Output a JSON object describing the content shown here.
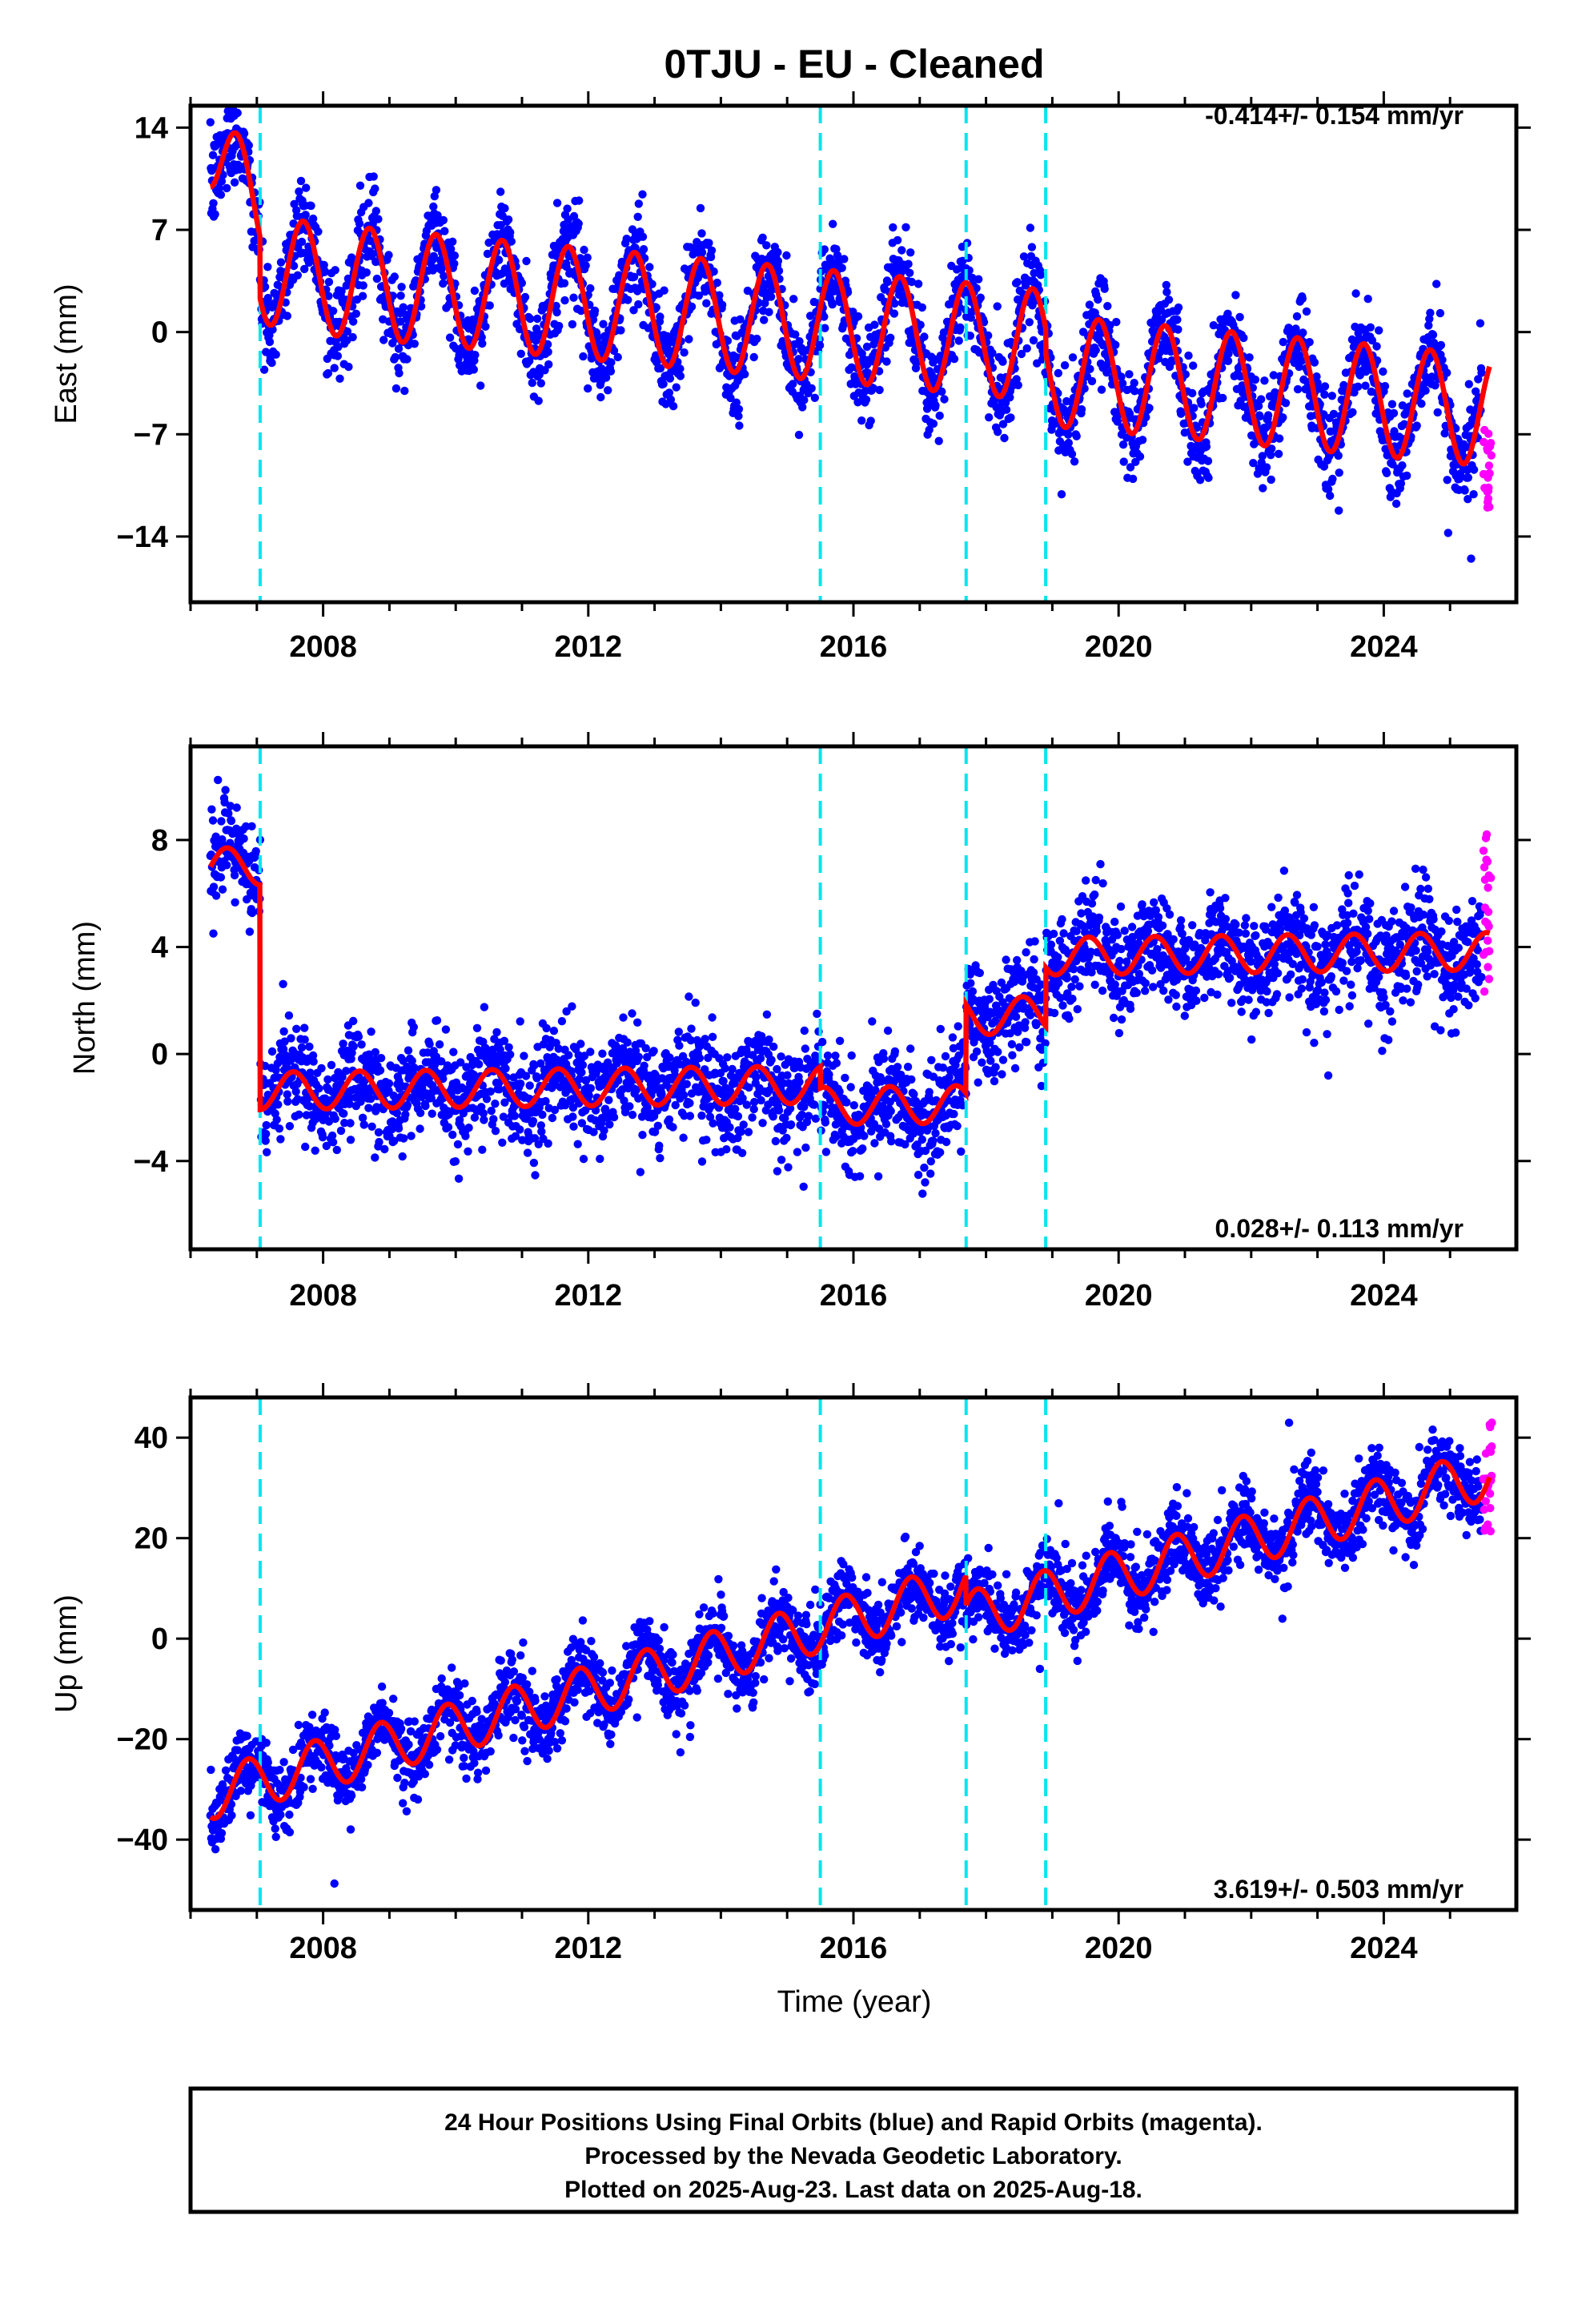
{
  "figure": {
    "title": "0TJU  - EU - Cleaned",
    "xlabel": "Time (year)",
    "notes": [
      "24 Hour Positions Using Final Orbits (blue) and Rapid Orbits (magenta).",
      "Processed by the Nevada Geodetic Laboratory.",
      "Plotted on 2025-Aug-23. Last data on 2025-Aug-18."
    ],
    "colors": {
      "final": "#0000ff",
      "rapid": "#ff00ff",
      "model": "#ff0000",
      "step": "#00e5ee"
    }
  },
  "chart_data": [
    {
      "type": "scatter",
      "component": "east",
      "ylabel": "East (mm)",
      "rate": "-0.414+/- 0.154 mm/yr",
      "xlim": [
        2006.0,
        2026.0
      ],
      "ylim": [
        -18.5,
        15.5
      ],
      "xticks": [
        2008,
        2012,
        2016,
        2020,
        2024
      ],
      "yticks": [
        14,
        7,
        0,
        -7,
        -14
      ],
      "yticklabels": [
        "14",
        "7",
        "0",
        "−7",
        "−14"
      ],
      "step_epochs": [
        2007.05,
        2015.5,
        2017.7,
        2018.9
      ],
      "model": {
        "start": 2006.3,
        "end": 2025.6,
        "slope": -0.414,
        "offset": 8.5,
        "annual_amp": 3.8,
        "annual_phase": 0.45,
        "steps": [
          [
            2007.05,
            -4.2
          ],
          [
            2015.5,
            0.0
          ],
          [
            2017.7,
            0.0
          ],
          [
            2018.9,
            -1.7
          ]
        ],
        "decays": [
          [
            2006.3,
            4.5,
            0.35
          ]
        ]
      },
      "noise": 1.6,
      "rapid_range": [
        -13.0,
        -6.5
      ],
      "series": [
        {
          "name": "Final Orbits",
          "color": "#0000ff"
        },
        {
          "name": "Rapid Orbits",
          "color": "#ff00ff"
        }
      ]
    },
    {
      "type": "scatter",
      "component": "north",
      "ylabel": "North (mm)",
      "rate": "0.028+/- 0.113 mm/yr",
      "xlim": [
        2006.0,
        2026.0
      ],
      "ylim": [
        -7.3,
        11.5
      ],
      "xticks": [
        2008,
        2012,
        2016,
        2020,
        2024
      ],
      "yticks": [
        8,
        4,
        0,
        -4
      ],
      "yticklabels": [
        "8",
        "4",
        "0",
        "−4"
      ],
      "step_epochs": [
        2007.05,
        2015.5,
        2017.7,
        2018.9
      ],
      "model": {
        "start": 2006.3,
        "end": 2025.6,
        "slope": 0.028,
        "offset": 7.0,
        "annual_amp": 0.7,
        "annual_phase": 0.3,
        "steps": [
          [
            2007.05,
            -8.4
          ],
          [
            2015.5,
            -0.8
          ],
          [
            2017.7,
            3.3
          ],
          [
            2018.9,
            2.2
          ]
        ],
        "decays": []
      },
      "noise": 0.95,
      "rapid_range": [
        2.0,
        8.5
      ],
      "series": [
        {
          "name": "Final Orbits",
          "color": "#0000ff"
        },
        {
          "name": "Rapid Orbits",
          "color": "#ff00ff"
        }
      ]
    },
    {
      "type": "scatter",
      "component": "up",
      "ylabel": "Up (mm)",
      "rate": "3.619+/- 0.503 mm/yr",
      "xlim": [
        2006.0,
        2026.0
      ],
      "ylim": [
        -54.0,
        48.0
      ],
      "xticks": [
        2008,
        2012,
        2016,
        2020,
        2024
      ],
      "yticks": [
        40,
        20,
        0,
        -20,
        -40
      ],
      "yticklabels": [
        "40",
        "20",
        "0",
        "−20",
        "−40"
      ],
      "step_epochs": [
        2007.05,
        2015.5,
        2017.7,
        2018.9
      ],
      "model": {
        "start": 2006.3,
        "end": 2025.6,
        "slope": 3.619,
        "offset": -31.0,
        "annual_amp": 5.0,
        "annual_phase": 0.62,
        "steps": [
          [
            2007.05,
            0.0
          ],
          [
            2015.5,
            0.0
          ],
          [
            2017.7,
            -6.0
          ],
          [
            2018.9,
            0.0
          ]
        ],
        "decays": []
      },
      "noise": 3.6,
      "rapid_range": [
        21.0,
        43.0
      ],
      "series": [
        {
          "name": "Final Orbits",
          "color": "#0000ff"
        },
        {
          "name": "Rapid Orbits",
          "color": "#ff00ff"
        }
      ]
    }
  ]
}
